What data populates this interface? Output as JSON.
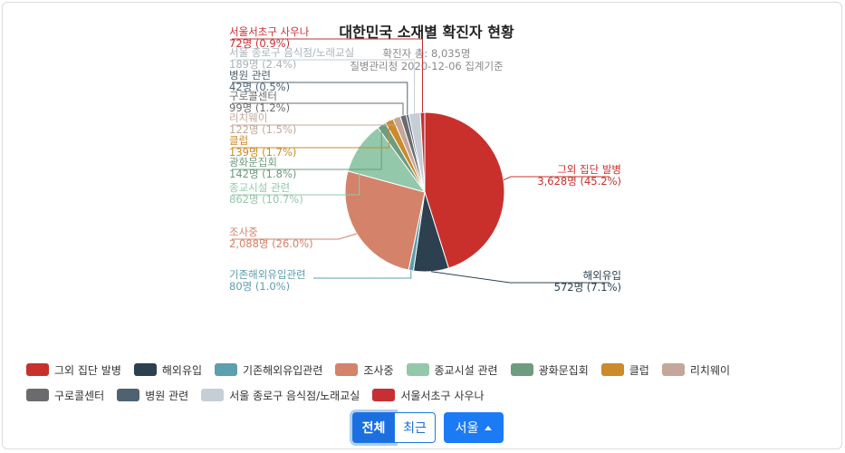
{
  "chart_data": {
    "type": "pie",
    "title": "대한민국 소재별 확진자 현황",
    "subtitle_total": "확진자 총: 8,035명",
    "subtitle_source": "질병관리청 2020-12-06 집계기준",
    "slices": [
      {
        "name": "그외 집단 발병",
        "value": 3628,
        "pct": "45.2%",
        "value_label": "3,628명 (45.2%)",
        "color": "#c9302c"
      },
      {
        "name": "해외유입",
        "value": 572,
        "pct": "7.1%",
        "value_label": "572명 (7.1%)",
        "color": "#2c4050"
      },
      {
        "name": "기존해외유입관련",
        "value": 80,
        "pct": "1.0%",
        "value_label": "80명 (1.0%)",
        "color": "#5c9fae"
      },
      {
        "name": "조사중",
        "value": 2088,
        "pct": "26.0%",
        "value_label": "2,088명 (26.0%)",
        "color": "#d4826a"
      },
      {
        "name": "종교시설 관련",
        "value": 862,
        "pct": "10.7%",
        "value_label": "862명 (10.7%)",
        "color": "#93c8ab"
      },
      {
        "name": "광화문집회",
        "value": 142,
        "pct": "1.8%",
        "value_label": "142명 (1.8%)",
        "color": "#6e9c7e"
      },
      {
        "name": "클럽",
        "value": 139,
        "pct": "1.7%",
        "value_label": "139명 (1.7%)",
        "color": "#cc8a2a"
      },
      {
        "name": "리치웨이",
        "value": 122,
        "pct": "1.5%",
        "value_label": "122명 (1.5%)",
        "color": "#c4a79a"
      },
      {
        "name": "구로콜센터",
        "value": 99,
        "pct": "1.2%",
        "value_label": "99명 (1.2%)",
        "color": "#6b6b6e"
      },
      {
        "name": "병원 관련",
        "value": 42,
        "pct": "0.5%",
        "value_label": "42명 (0.5%)",
        "color": "#4f6272"
      },
      {
        "name": "서울 종로구 음식점/노래교실",
        "value": 189,
        "pct": "2.4%",
        "value_label": "189명 (2.4%)",
        "color": "#c6ced5"
      },
      {
        "name": "서울서초구 사우나",
        "value": 72,
        "pct": "0.9%",
        "value_label": "72명 (0.9%)",
        "color": "#c62f33"
      }
    ],
    "legend_position": "bottom"
  },
  "controls": {
    "all_label": "전체",
    "recent_label": "최근",
    "region_label": "서울"
  }
}
